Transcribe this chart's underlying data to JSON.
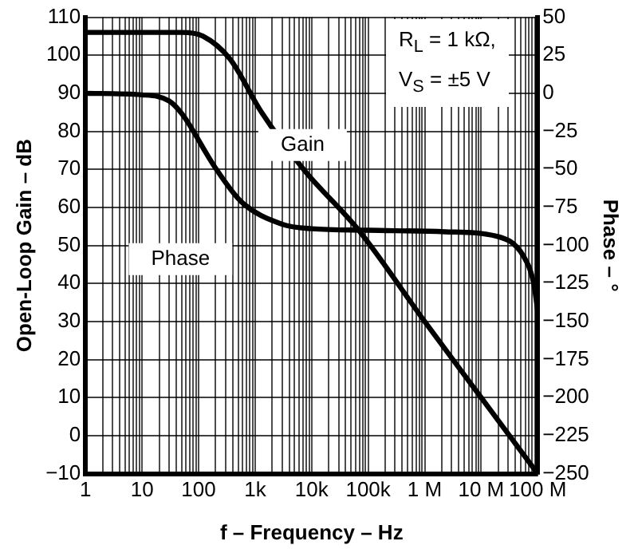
{
  "chart_data": {
    "type": "line",
    "xlabel": "f – Frequency – Hz",
    "ylabel": "Open-Loop Gain – dB",
    "y2label": "Phase – °",
    "log": "x",
    "grid": true,
    "legend": false,
    "marker": "none",
    "line_style": "solid",
    "xlim": [
      1,
      100000000
    ],
    "xticks": [
      1,
      10,
      100,
      {
        "value": 1000,
        "label": "1k"
      },
      {
        "value": 10000,
        "label": "10k"
      },
      {
        "value": 100000,
        "label": "100k"
      },
      {
        "value": 1000000,
        "label": "1 M"
      },
      {
        "value": 10000000,
        "label": "10 M"
      },
      {
        "value": 100000000,
        "label": "100 M"
      }
    ],
    "ylim": [
      -10,
      110
    ],
    "yticks": [
      -10,
      0,
      10,
      20,
      30,
      40,
      50,
      60,
      70,
      80,
      90,
      100,
      110
    ],
    "y2lim": [
      -250,
      50
    ],
    "y2ticks": [
      -250,
      -225,
      -200,
      -175,
      -150,
      -125,
      -100,
      -75,
      -50,
      -25,
      0,
      25,
      50
    ],
    "series": [
      {
        "name": "Gain",
        "color": "#000000",
        "x": [
          1,
          10,
          50,
          120,
          360,
          1300,
          7200,
          68000,
          1000000,
          10000000,
          100000000
        ],
        "values": [
          106,
          106,
          106,
          105,
          99,
          85,
          70,
          54,
          30,
          10,
          -10
        ]
      },
      {
        "name": "Phase",
        "color": "#000000",
        "axis": "y2",
        "x": [
          1,
          10,
          30,
          52,
          190,
          560,
          3000,
          10000,
          100000,
          2300000,
          19000000,
          56000000,
          85000000,
          100000000
        ],
        "values": [
          0,
          -1,
          -5,
          -14,
          -48,
          -71,
          -86,
          -89,
          -90,
          -91,
          -94,
          -107,
          -125,
          -143
        ]
      }
    ],
    "annotations": [
      "R$_{L}$ = 1 kΩ,",
      "V$_{S}$ = ±5 V"
    ]
  }
}
